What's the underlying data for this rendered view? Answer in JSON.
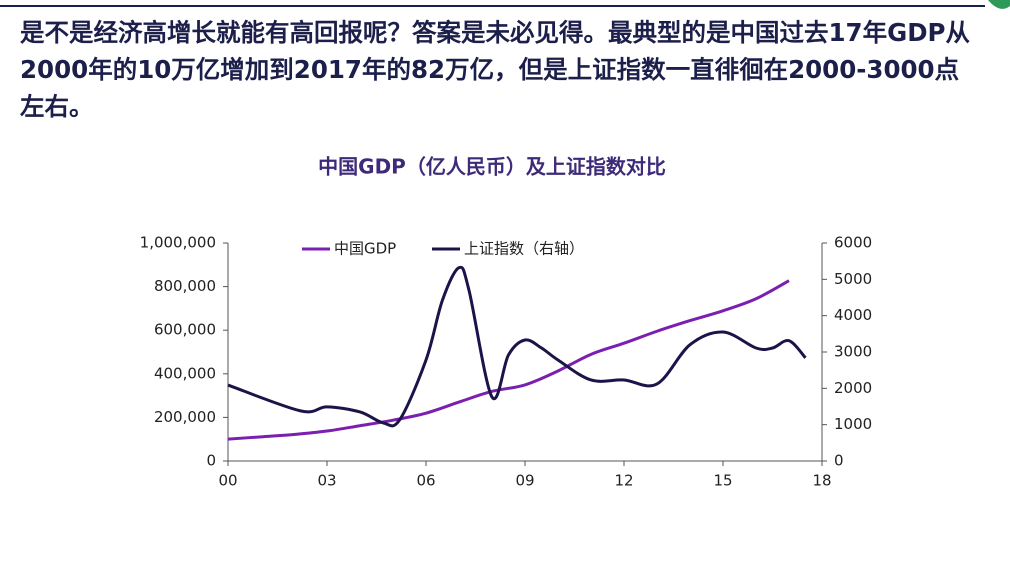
{
  "header": {
    "text": "是不是经济高增长就能有高回报呢？答案是未必见得。最典型的是中国过去17年GDP从2000年的10万亿增加到2017年的82万亿，但是上证指数一直徘徊在2000-3000点左右。"
  },
  "chart_data": {
    "type": "line",
    "title": "中国GDP（亿人民币）及上证指数对比",
    "xlim": [
      0,
      18
    ],
    "xticks": [
      {
        "value": 0,
        "label": "00"
      },
      {
        "value": 3,
        "label": "03"
      },
      {
        "value": 6,
        "label": "06"
      },
      {
        "value": 9,
        "label": "09"
      },
      {
        "value": 12,
        "label": "12"
      },
      {
        "value": 15,
        "label": "15"
      },
      {
        "value": 18,
        "label": "18"
      }
    ],
    "ylim": [
      0,
      1000000
    ],
    "yticks": [
      0,
      {
        "value": 200000,
        "label": "200,000"
      },
      {
        "value": 400000,
        "label": "400,000"
      },
      {
        "value": 600000,
        "label": "600,000"
      },
      {
        "value": 800000,
        "label": "800,000"
      },
      {
        "value": 1000000,
        "label": "1,000,000"
      }
    ],
    "y2lim": [
      0,
      6000
    ],
    "y2ticks": [
      0,
      1000,
      2000,
      3000,
      4000,
      5000,
      6000
    ],
    "grid": false,
    "legend": "top",
    "series": [
      {
        "name": "中国GDP",
        "color": "#7a1fb0",
        "x": [
          0,
          1,
          2,
          3,
          4,
          5,
          6,
          7,
          8,
          9,
          10,
          11,
          12,
          13,
          14,
          15,
          16,
          17
        ],
        "values": [
          100280,
          110863,
          121717,
          137422,
          161840,
          187319,
          219439,
          270232,
          319516,
          349081,
          413030,
          489301,
          540367,
          595244,
          643974,
          689052,
          744127,
          827122
        ]
      },
      {
        "name": "上证指数（右轴）",
        "color": "#1b1449",
        "axis": "y2",
        "x": [
          0,
          2.2,
          3,
          4,
          4.7,
          5.2,
          6,
          6.5,
          7,
          7.3,
          8,
          8.5,
          9,
          9.5,
          10,
          11,
          12,
          13,
          14,
          15,
          16,
          16.5,
          17,
          17.5
        ],
        "values": [
          2090,
          1380,
          1490,
          1350,
          1050,
          1130,
          2780,
          4430,
          5320,
          4710,
          1760,
          2920,
          3330,
          3110,
          2780,
          2230,
          2230,
          2120,
          3200,
          3550,
          3110,
          3110,
          3310,
          2840
        ]
      }
    ]
  }
}
